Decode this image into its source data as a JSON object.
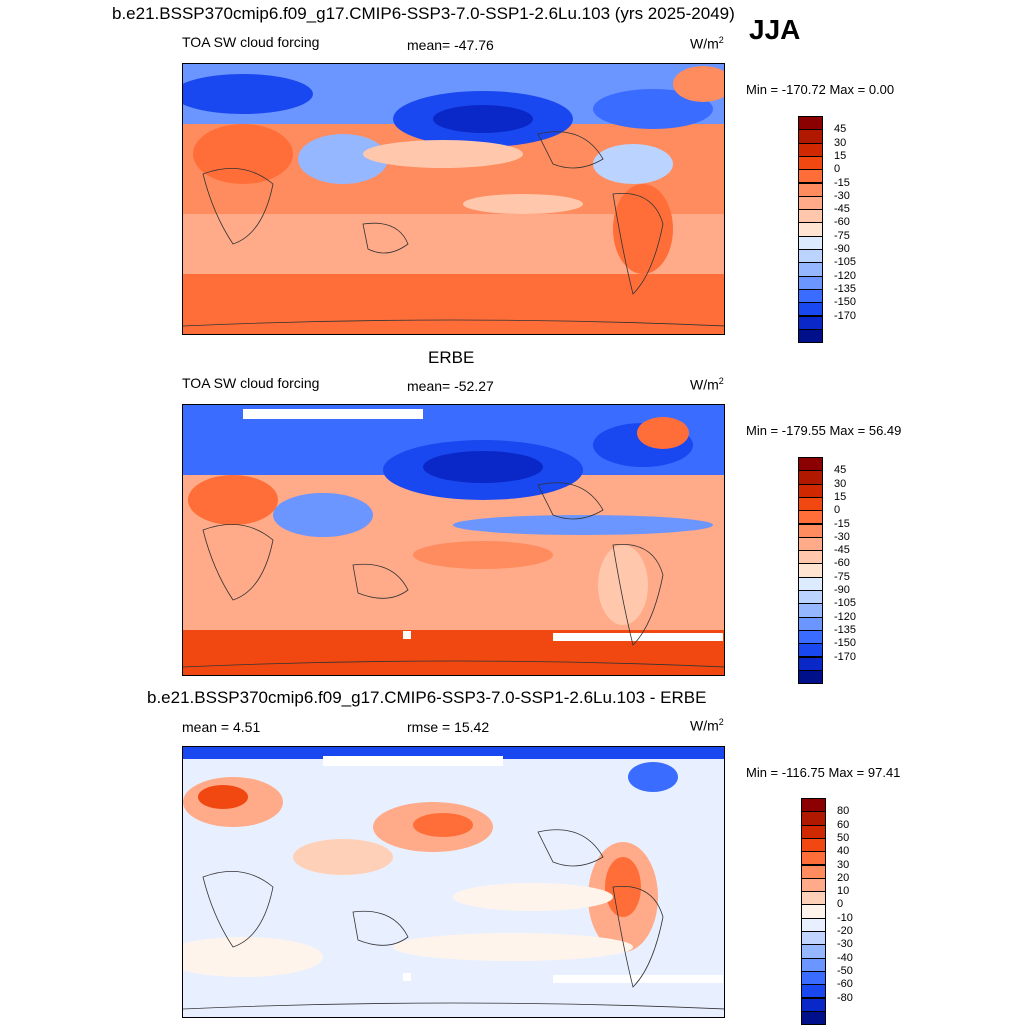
{
  "header": {
    "model_title": "b.e21.BSSP370cmip6.f09_g17.CMIP6-SSP3-7.0-SSP1-2.6Lu.103 (yrs 2025-2049)",
    "season": "JJA"
  },
  "panels": [
    {
      "id": "model",
      "variable": "TOA SW cloud forcing",
      "stat_text": "mean= -47.76",
      "units_base": "W/m",
      "units_exp": "2",
      "minmax": "Min = -170.72 Max =   0.00",
      "colorbar": {
        "colors": [
          "#8B0000",
          "#B01800",
          "#D02800",
          "#F04810",
          "#FF6E38",
          "#FF8C5E",
          "#FFAA88",
          "#FFC8AD",
          "#FFE4D2",
          "#DDEBFF",
          "#BBD3FF",
          "#95B7FF",
          "#6B95FF",
          "#3A6CFF",
          "#1A48F0",
          "#0A28C8",
          "#00108A"
        ],
        "labels": [
          "45",
          "30",
          "15",
          "0",
          "-15",
          "-30",
          "-45",
          "-60",
          "-75",
          "-90",
          "-105",
          "-120",
          "-135",
          "-150",
          "-170"
        ]
      }
    },
    {
      "id": "obs",
      "panel_title": "ERBE",
      "variable": "TOA SW cloud forcing",
      "stat_text": "mean= -52.27",
      "units_base": "W/m",
      "units_exp": "2",
      "minmax": "Min = -179.55 Max =  56.49",
      "colorbar": {
        "colors": [
          "#8B0000",
          "#B01800",
          "#D02800",
          "#F04810",
          "#FF6E38",
          "#FF8C5E",
          "#FFAA88",
          "#FFC8AD",
          "#FFE4D2",
          "#DDEBFF",
          "#BBD3FF",
          "#95B7FF",
          "#6B95FF",
          "#3A6CFF",
          "#1A48F0",
          "#0A28C8",
          "#00108A"
        ],
        "labels": [
          "45",
          "30",
          "15",
          "0",
          "-15",
          "-30",
          "-45",
          "-60",
          "-75",
          "-90",
          "-105",
          "-120",
          "-135",
          "-150",
          "-170"
        ]
      }
    },
    {
      "id": "diff",
      "panel_title": "b.e21.BSSP370cmip6.f09_g17.CMIP6-SSP3-7.0-SSP1-2.6Lu.103 - ERBE",
      "stat_text": "mean =   4.51",
      "stat2_text": "rmse =  15.42",
      "units_base": "W/m",
      "units_exp": "2",
      "minmax": "Min = -116.75 Max =  97.41",
      "colorbar": {
        "colors": [
          "#8B0000",
          "#B01800",
          "#D02800",
          "#F04810",
          "#FF6E38",
          "#FF8C5E",
          "#FFAA88",
          "#FFD0B8",
          "#FFF4EC",
          "#E8F0FF",
          "#C0D4FF",
          "#95B7FF",
          "#6B95FF",
          "#3A6CFF",
          "#1A48F0",
          "#0A28C8",
          "#00108A"
        ],
        "labels": [
          "80",
          "60",
          "50",
          "40",
          "30",
          "20",
          "10",
          "0",
          "-10",
          "-20",
          "-30",
          "-40",
          "-50",
          "-60",
          "-80"
        ]
      }
    }
  ]
}
